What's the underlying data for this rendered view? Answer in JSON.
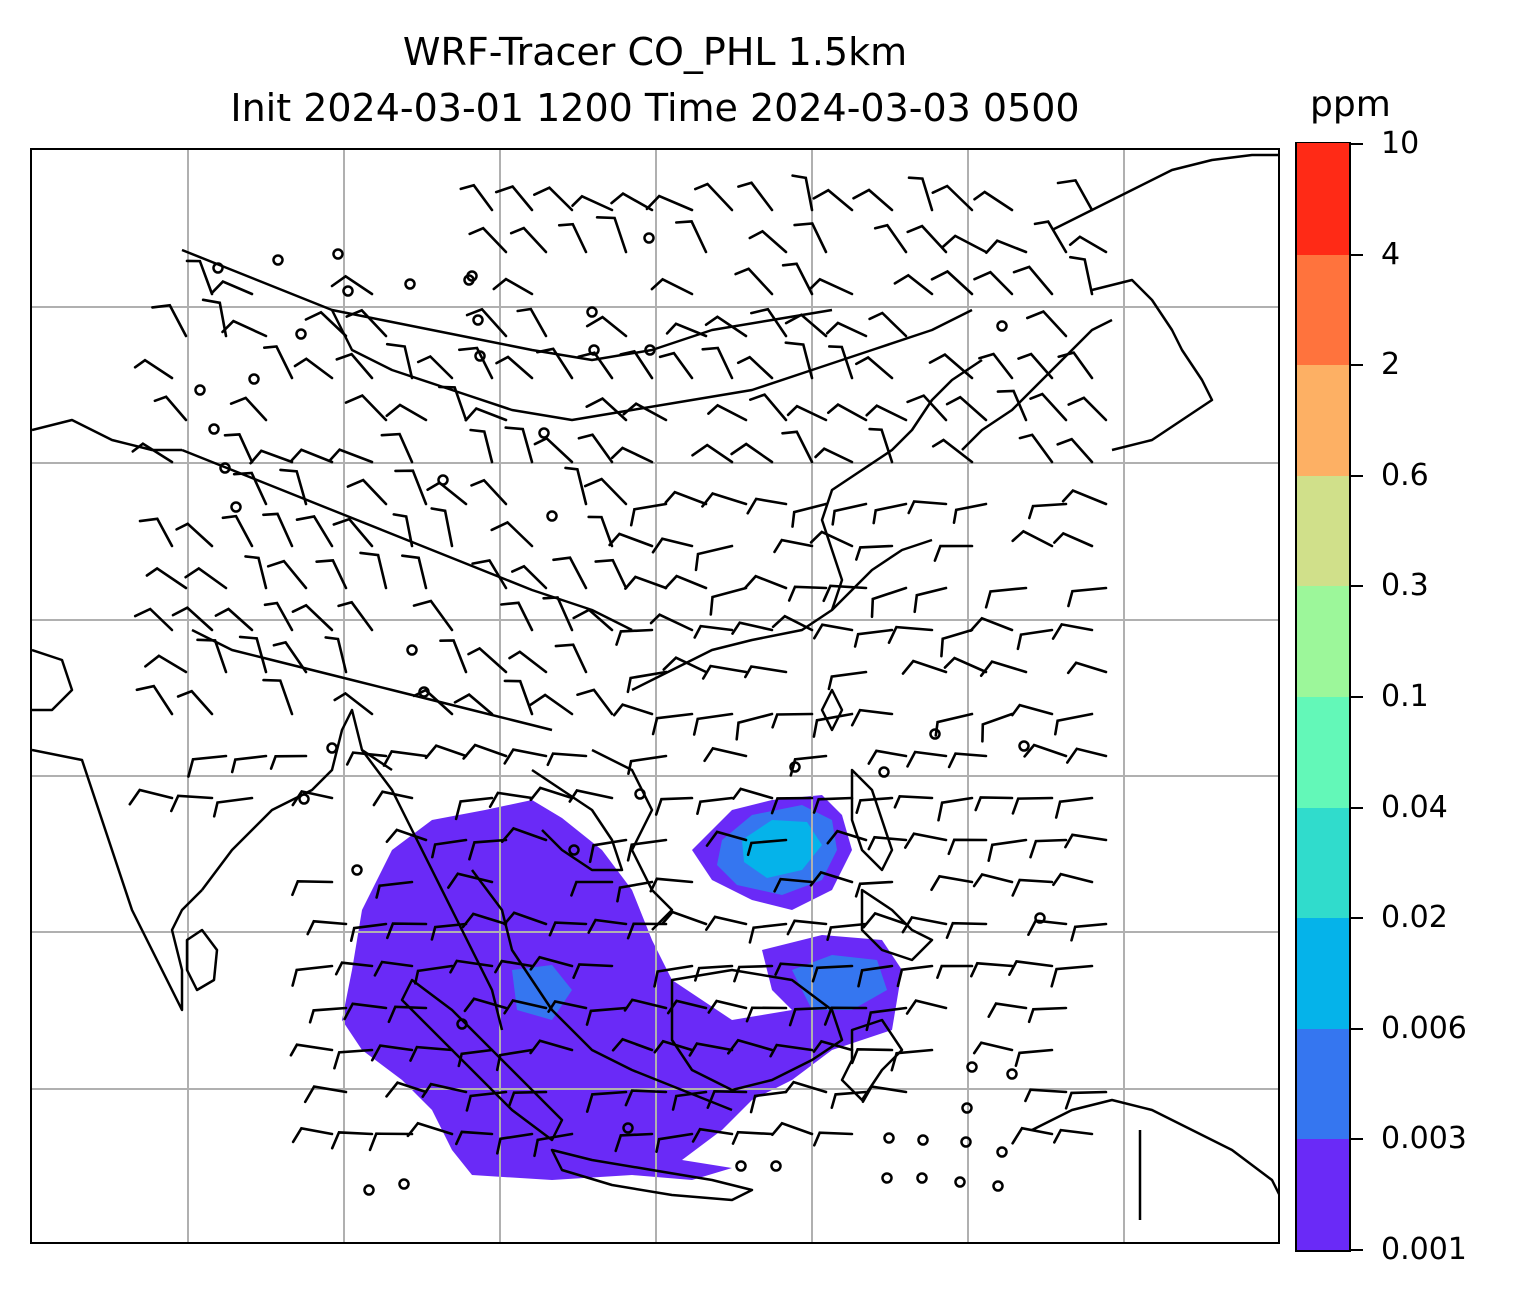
{
  "title": {
    "line1": "WRF-Tracer CO_PHL 1.5km",
    "line2": "Init 2024-03-01 1200 Time 2024-03-03 0500"
  },
  "colorbar": {
    "unit": "ppm",
    "labels": [
      "0.001",
      "0.003",
      "0.006",
      "0.02",
      "0.04",
      "0.1",
      "0.3",
      "0.6",
      "2",
      "4",
      "10"
    ],
    "colors": [
      "#6a2af7",
      "#3576f0",
      "#05b3ea",
      "#30dccc",
      "#63f8b8",
      "#9cf79a",
      "#d0e08a",
      "#fdb064",
      "#ff733d",
      "#ff2a16"
    ]
  },
  "map": {
    "gridlines": true,
    "grid_color": "#b0b0b0",
    "tracer_colors": {
      "low": "#6a2af7",
      "mid": "#3576f0",
      "high": "#05b3ea"
    },
    "wind_barbs": true,
    "coastline_color": "#000000"
  }
}
